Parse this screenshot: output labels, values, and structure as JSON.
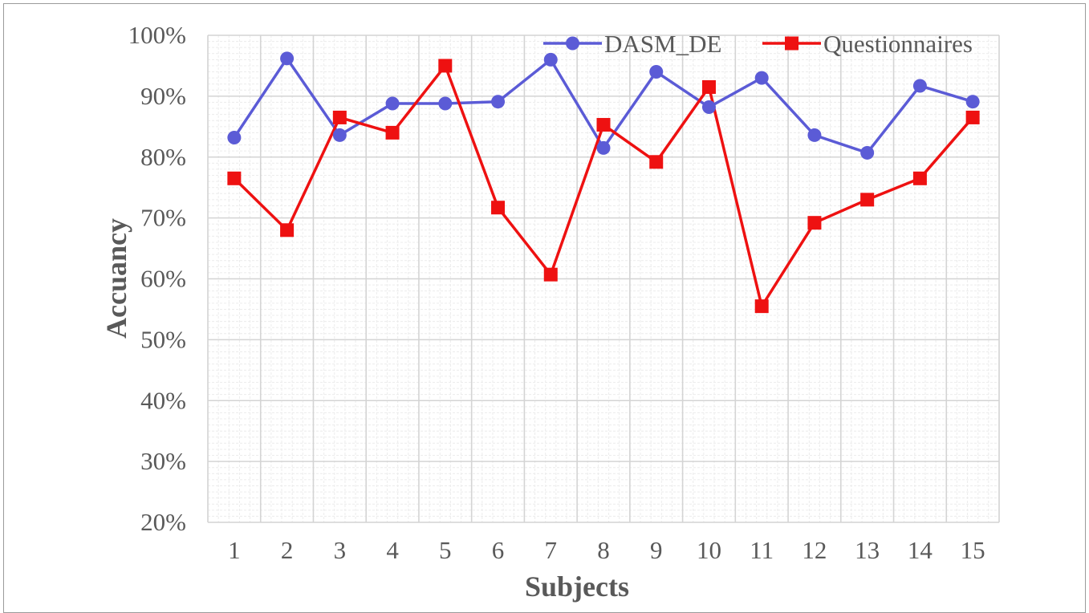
{
  "chart_data": {
    "type": "line",
    "categories": [
      "1",
      "2",
      "3",
      "4",
      "5",
      "6",
      "7",
      "8",
      "9",
      "10",
      "11",
      "12",
      "13",
      "14",
      "15"
    ],
    "xlabel": "Subjects",
    "ylabel": "Accuancy",
    "ylim": [
      0.2,
      1.0
    ],
    "yticks": [
      "20%",
      "30%",
      "40%",
      "50%",
      "60%",
      "70%",
      "80%",
      "90%",
      "100%"
    ],
    "grid": true,
    "legend": "top-right",
    "series": [
      {
        "name": "DASM_DE",
        "color": "#5b5bd6",
        "marker": "circle",
        "values": [
          0.832,
          0.962,
          0.836,
          0.888,
          0.888,
          0.891,
          0.96,
          0.815,
          0.94,
          0.882,
          0.93,
          0.836,
          0.807,
          0.917,
          0.891
        ]
      },
      {
        "name": "Questionnaires",
        "color": "#ee1111",
        "marker": "square",
        "values": [
          0.765,
          0.68,
          0.865,
          0.84,
          0.95,
          0.717,
          0.607,
          0.853,
          0.792,
          0.915,
          0.555,
          0.692,
          0.73,
          0.765,
          0.865
        ]
      }
    ]
  }
}
